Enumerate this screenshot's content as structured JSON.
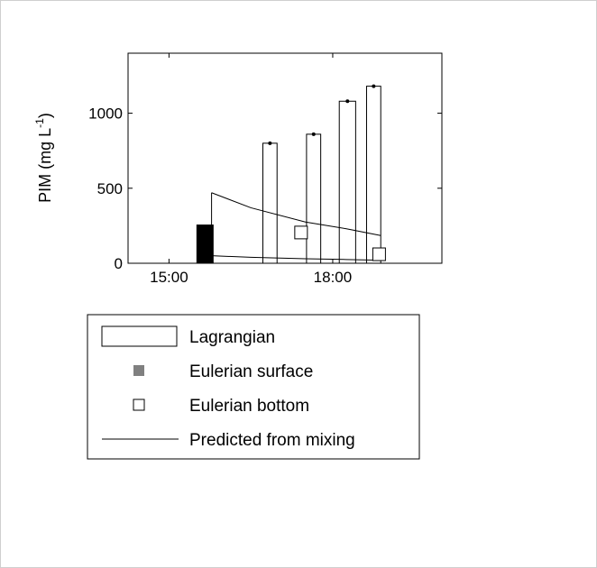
{
  "chart_data": {
    "type": "bar",
    "title": "",
    "xlabel": "",
    "ylabel": {
      "main": "PIM (mg L",
      "superscript": "-1",
      "close": ")"
    },
    "x_unit": "hours",
    "xlim": [
      14.25,
      20.0
    ],
    "ylim": [
      0,
      1400
    ],
    "x_ticks": [
      {
        "value": 15.0,
        "label": "15:00"
      },
      {
        "value": 18.0,
        "label": "18:00"
      }
    ],
    "y_ticks": [
      {
        "value": 0,
        "label": "0"
      },
      {
        "value": 500,
        "label": "500"
      },
      {
        "value": 1000,
        "label": "1000"
      }
    ],
    "grid": false,
    "legend_position": "below",
    "series": [
      {
        "name": "Lagrangian",
        "kind": "open-bar",
        "color": "#000000",
        "bars": [
          {
            "x_start": 15.78,
            "x_end": 15.78,
            "value": 470
          },
          {
            "x_start": 16.72,
            "x_end": 16.98,
            "value": 800
          },
          {
            "x_start": 17.52,
            "x_end": 17.78,
            "value": 860
          },
          {
            "x_start": 18.12,
            "x_end": 18.42,
            "value": 1080
          },
          {
            "x_start": 18.62,
            "x_end": 18.88,
            "value": 1180
          }
        ]
      },
      {
        "name": "Eulerian surface",
        "kind": "filled-marker",
        "color": "#000000",
        "legend_color": "#808080",
        "points": [
          {
            "x": 15.66,
            "value": 255
          }
        ]
      },
      {
        "name": "Eulerian bottom",
        "kind": "open-marker",
        "color": "#000000",
        "points": [
          {
            "x": 17.42,
            "value": 205
          },
          {
            "x": 18.85,
            "value": 60
          }
        ]
      },
      {
        "name": "Predicted from mixing",
        "kind": "line",
        "color": "#000000",
        "lines": [
          {
            "x": [
              15.78,
              16.5,
              17.5,
              18.25,
              18.88
            ],
            "y": [
              470,
              370,
              275,
              230,
              185
            ]
          },
          {
            "x": [
              15.78,
              16.5,
              17.5,
              18.25,
              18.88
            ],
            "y": [
              50,
              40,
              30,
              25,
              20
            ]
          }
        ]
      }
    ]
  }
}
